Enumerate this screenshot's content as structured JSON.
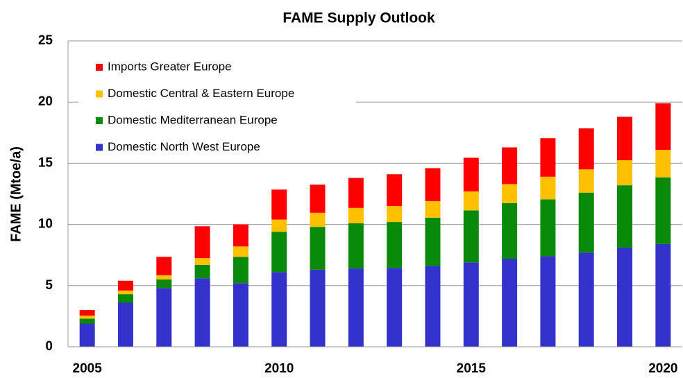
{
  "chart_data": {
    "type": "stacked_bar",
    "title": "FAME Supply Outlook",
    "y_label": "FAME (Mtoe/a)",
    "categories": [
      "2005",
      null,
      null,
      null,
      null,
      "2010",
      null,
      null,
      null,
      null,
      "2015",
      null,
      null,
      null,
      null,
      "2020"
    ],
    "series": [
      {
        "name": "Domestic North West Europe",
        "color": "#3333cc",
        "values": [
          1.9,
          3.6,
          4.8,
          5.6,
          5.2,
          6.1,
          6.3,
          6.4,
          6.45,
          6.6,
          6.9,
          7.2,
          7.4,
          7.7,
          8.1,
          8.4
        ]
      },
      {
        "name": "Domestic Mediterranean Europe",
        "color": "#0a8a0a",
        "values": [
          0.4,
          0.7,
          0.7,
          1.1,
          2.15,
          3.3,
          3.5,
          3.7,
          3.75,
          3.95,
          4.25,
          4.55,
          4.65,
          4.9,
          5.1,
          5.45
        ]
      },
      {
        "name": "Domestic Central & Eastern Europe",
        "color": "#ffc000",
        "values": [
          0.25,
          0.3,
          0.35,
          0.55,
          0.85,
          1.0,
          1.15,
          1.25,
          1.3,
          1.35,
          1.55,
          1.55,
          1.85,
          1.9,
          2.05,
          2.25
        ]
      },
      {
        "name": "Imports Greater Europe",
        "color": "#ff0000",
        "values": [
          0.45,
          0.8,
          1.5,
          2.6,
          1.8,
          2.45,
          2.3,
          2.45,
          2.6,
          2.7,
          2.75,
          3.0,
          3.15,
          3.35,
          3.55,
          3.8
        ]
      }
    ],
    "ylim": [
      0,
      25
    ],
    "yticks": [
      0,
      5,
      10,
      15,
      20,
      25
    ],
    "grid": true,
    "legend": "upper left"
  }
}
